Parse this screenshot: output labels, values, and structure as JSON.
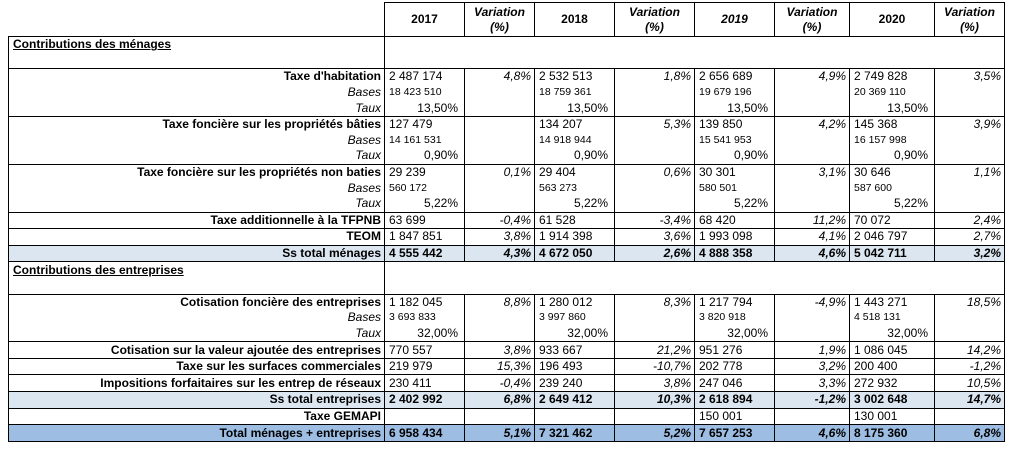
{
  "header": {
    "years": [
      "2017",
      "2018",
      "2019",
      "2020"
    ],
    "year_italic": [
      false,
      false,
      true,
      false
    ],
    "variation_label": "Variation",
    "variation_unit": "(%)"
  },
  "sections": {
    "menages": "Contributions des ménages",
    "entreprises": "Contributions des entreprises"
  },
  "rows": {
    "th": {
      "label": "Taxe d'habitation",
      "v": [
        "2 487 174",
        "2 532 513",
        "2 656 689",
        "2 749 828"
      ],
      "var": [
        "4,8%",
        "1,8%",
        "4,9%",
        "3,5%"
      ]
    },
    "th_bases": {
      "label": "Bases",
      "v": [
        "18 423 510",
        "18 759 361",
        "19 679 196",
        "20 369 110"
      ]
    },
    "th_taux": {
      "label": "Taux",
      "v": [
        "13,50%",
        "13,50%",
        "13,50%",
        "13,50%"
      ]
    },
    "tfpb": {
      "label": "Taxe foncière sur les propriétés bâties",
      "v": [
        "127 479",
        "134 207",
        "139 850",
        "145 368"
      ],
      "var": [
        "",
        "5,3%",
        "4,2%",
        "3,9%"
      ]
    },
    "tfpb_bases": {
      "label": "Bases",
      "v": [
        "14 161 531",
        "14 918 944",
        "15 541 953",
        "16 157 998"
      ]
    },
    "tfpb_taux": {
      "label": "Taux",
      "v": [
        "0,90%",
        "0,90%",
        "0,90%",
        "0,90%"
      ]
    },
    "tfpnb": {
      "label": "Taxe foncière sur les propriétés non baties",
      "v": [
        "29 239",
        "29 404",
        "30 301",
        "30 646"
      ],
      "var": [
        "0,1%",
        "0,6%",
        "3,1%",
        "1,1%"
      ]
    },
    "tfpnb_bases": {
      "label": "Bases",
      "v": [
        "560 172",
        "563 273",
        "580 501",
        "587 600"
      ]
    },
    "tfpnb_taux": {
      "label": "Taux",
      "v": [
        "5,22%",
        "5,22%",
        "5,22%",
        "5,22%"
      ]
    },
    "ta": {
      "label": "Taxe additionnelle à la TFPNB",
      "v": [
        "63 699",
        "61 528",
        "68 420",
        "70 072"
      ],
      "var": [
        "-0,4%",
        "-3,4%",
        "11,2%",
        "2,4%"
      ]
    },
    "teom": {
      "label": "TEOM",
      "v": [
        "1 847 851",
        "1 914 398",
        "1 993 098",
        "2 046 797"
      ],
      "var": [
        "3,8%",
        "3,6%",
        "4,1%",
        "2,7%"
      ]
    },
    "st_men": {
      "label": "Ss total ménages",
      "v": [
        "4 555 442",
        "4 672 050",
        "4 888 358",
        "5 042 711"
      ],
      "var": [
        "4,3%",
        "2,6%",
        "4,6%",
        "3,2%"
      ]
    },
    "cfe": {
      "label": "Cotisation foncière des entreprises",
      "v": [
        "1 182 045",
        "1 280 012",
        "1 217 794",
        "1 443 271"
      ],
      "var": [
        "8,8%",
        "8,3%",
        "-4,9%",
        "18,5%"
      ]
    },
    "cfe_bases": {
      "label": "Bases",
      "v": [
        "3 693 833",
        "3 997 860",
        "3 820 918",
        "4 518 131"
      ]
    },
    "cfe_taux": {
      "label": "Taux",
      "v": [
        "32,00%",
        "32,00%",
        "32,00%",
        "32,00%"
      ]
    },
    "cvae": {
      "label": "Cotisation sur la valeur ajoutée des entreprises",
      "v": [
        "770 557",
        "933 667",
        "951 276",
        "1 086 045"
      ],
      "var": [
        "3,8%",
        "21,2%",
        "1,9%",
        "14,2%"
      ]
    },
    "tascom": {
      "label": "Taxe sur les surfaces commerciales",
      "v": [
        "219 979",
        "196 493",
        "202 778",
        "200 400"
      ],
      "var": [
        "15,3%",
        "-10,7%",
        "3,2%",
        "-1,2%"
      ]
    },
    "ifer": {
      "label": "Impositions forfaitaires sur les entrep de réseaux",
      "v": [
        "230 411",
        "239 240",
        "247 046",
        "272 932"
      ],
      "var": [
        "-0,4%",
        "3,8%",
        "3,3%",
        "10,5%"
      ]
    },
    "st_ent": {
      "label": "Ss total entreprises",
      "v": [
        "2 402 992",
        "2 649 412",
        "2 618 894",
        "3 002 648"
      ],
      "var": [
        "6,8%",
        "10,3%",
        "-1,2%",
        "14,7%"
      ]
    },
    "gemapi": {
      "label": "Taxe GEMAPI",
      "v": [
        "",
        "",
        "150 001",
        "130 001"
      ],
      "var": [
        "",
        "",
        "",
        ""
      ]
    },
    "total": {
      "label": "Total ménages + entreprises",
      "v": [
        "6 958 434",
        "7 321 462",
        "7 657 253",
        "8 175 360"
      ],
      "var": [
        "5,1%",
        "5,2%",
        "4,6%",
        "6,8%"
      ]
    }
  },
  "colors": {
    "subtotal_bg": "#dce6f1",
    "total_bg": "#9dbde3"
  }
}
